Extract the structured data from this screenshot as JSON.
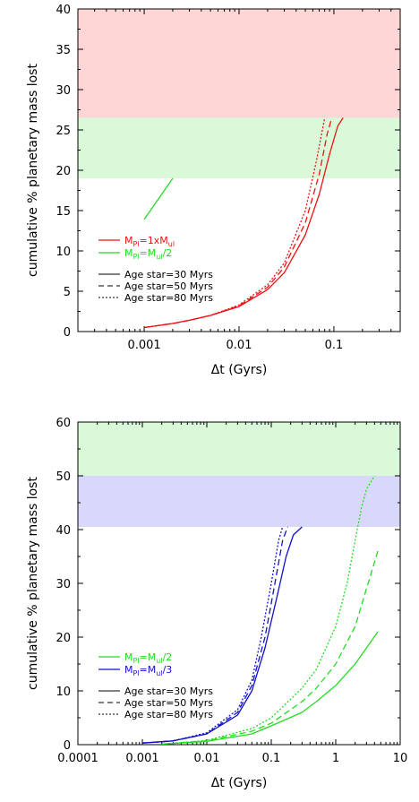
{
  "chart_data": [
    {
      "type": "line",
      "xscale": "log",
      "xlim": [
        0.0002,
        0.5
      ],
      "ylim": [
        0,
        40
      ],
      "xlabel": "Δt (Gyrs)",
      "ylabel": "cumulative % planetary mass lost",
      "xticks": [
        {
          "value": 0.001,
          "label": "0.001"
        },
        {
          "value": 0.01,
          "label": "0.01"
        },
        {
          "value": 0.1,
          "label": "0.1"
        }
      ],
      "yticks": [
        {
          "value": 0,
          "label": "0"
        },
        {
          "value": 5,
          "label": "5"
        },
        {
          "value": 10,
          "label": "10"
        },
        {
          "value": 15,
          "label": "15"
        },
        {
          "value": 20,
          "label": "20"
        },
        {
          "value": 25,
          "label": "25"
        },
        {
          "value": 30,
          "label": "30"
        },
        {
          "value": 35,
          "label": "35"
        },
        {
          "value": 40,
          "label": "40"
        }
      ],
      "bands": [
        {
          "y0": 26.5,
          "y1": 40,
          "color": "#ffd6d6"
        },
        {
          "y0": 19,
          "y1": 26.5,
          "color": "#d9f9d9"
        }
      ],
      "legend_placement": "left",
      "legend_mass": [
        {
          "main": "M",
          "sub1": "Pl",
          "mid": "=1xM",
          "sub2": "ul",
          "color": "#ee1111"
        },
        {
          "main": "M",
          "sub1": "Pl",
          "mid": "=M",
          "sub2": "ul",
          "tail": "/2",
          "color": "#22dd22"
        }
      ],
      "legend_age": [
        {
          "label": "Age star=30 Myrs",
          "dash": "solid"
        },
        {
          "label": "Age star=50 Myrs",
          "dash": "dashed"
        },
        {
          "label": "Age star=80 Myrs",
          "dash": "dotted"
        }
      ],
      "series": [
        {
          "color": "#ee1111",
          "dash": "solid",
          "points": [
            [
              0.001,
              0.5
            ],
            [
              0.002,
              1.0
            ],
            [
              0.003,
              1.4
            ],
            [
              0.005,
              2.0
            ],
            [
              0.01,
              3.1
            ],
            [
              0.02,
              5.2
            ],
            [
              0.03,
              7.3
            ],
            [
              0.05,
              12.0
            ],
            [
              0.07,
              17.0
            ],
            [
              0.09,
              22.0
            ],
            [
              0.11,
              25.5
            ],
            [
              0.125,
              26.5
            ]
          ]
        },
        {
          "color": "#ee1111",
          "dash": "dashed",
          "points": [
            [
              0.001,
              0.5
            ],
            [
              0.002,
              1.0
            ],
            [
              0.003,
              1.4
            ],
            [
              0.005,
              2.0
            ],
            [
              0.01,
              3.2
            ],
            [
              0.02,
              5.5
            ],
            [
              0.03,
              8.0
            ],
            [
              0.05,
              13.5
            ],
            [
              0.07,
              19.5
            ],
            [
              0.085,
              24.5
            ],
            [
              0.095,
              26.5
            ]
          ]
        },
        {
          "color": "#ee1111",
          "dash": "dotted",
          "points": [
            [
              0.001,
              0.5
            ],
            [
              0.002,
              1.0
            ],
            [
              0.003,
              1.4
            ],
            [
              0.005,
              2.0
            ],
            [
              0.01,
              3.3
            ],
            [
              0.02,
              5.8
            ],
            [
              0.03,
              8.5
            ],
            [
              0.05,
              15.0
            ],
            [
              0.065,
              21.0
            ],
            [
              0.08,
              26.5
            ]
          ]
        },
        {
          "color": "#22dd22",
          "dash": "solid",
          "points": [
            [
              0.001,
              13.9
            ],
            [
              0.002,
              19.0
            ]
          ]
        }
      ]
    },
    {
      "type": "line",
      "xscale": "log",
      "xlim": [
        0.0001,
        10
      ],
      "ylim": [
        0,
        60
      ],
      "xlabel": "Δt (Gyrs)",
      "ylabel": "cumulative % planetary mass lost",
      "xticks": [
        {
          "value": 0.0001,
          "label": "0.0001"
        },
        {
          "value": 0.001,
          "label": "0.001"
        },
        {
          "value": 0.01,
          "label": "0.01"
        },
        {
          "value": 0.1,
          "label": "0.1"
        },
        {
          "value": 1,
          "label": "1"
        },
        {
          "value": 10,
          "label": "10"
        }
      ],
      "yticks": [
        {
          "value": 0,
          "label": "0"
        },
        {
          "value": 10,
          "label": "10"
        },
        {
          "value": 20,
          "label": "20"
        },
        {
          "value": 30,
          "label": "30"
        },
        {
          "value": 40,
          "label": "40"
        },
        {
          "value": 50,
          "label": "50"
        },
        {
          "value": 60,
          "label": "60"
        }
      ],
      "bands": [
        {
          "y0": 50,
          "y1": 60,
          "color": "#d9f9d9"
        },
        {
          "y0": 40.5,
          "y1": 50,
          "color": "#d8d8fb"
        }
      ],
      "legend_placement": "left",
      "legend_mass": [
        {
          "main": "M",
          "sub1": "Pl",
          "mid": "=M",
          "sub2": "ul",
          "tail": "/2",
          "color": "#22dd22"
        },
        {
          "main": "M",
          "sub1": "Pl",
          "mid": "=M",
          "sub2": "ul",
          "tail": "/3",
          "color": "#1111cc"
        }
      ],
      "legend_age": [
        {
          "label": "Age star=30 Myrs",
          "dash": "solid"
        },
        {
          "label": "Age star=50 Myrs",
          "dash": "dashed"
        },
        {
          "label": "Age star=80 Myrs",
          "dash": "dotted"
        }
      ],
      "series": [
        {
          "color": "#1111cc",
          "dash": "solid",
          "points": [
            [
              0.001,
              0.3
            ],
            [
              0.003,
              0.7
            ],
            [
              0.01,
              2.0
            ],
            [
              0.03,
              5.5
            ],
            [
              0.05,
              10.0
            ],
            [
              0.08,
              18.0
            ],
            [
              0.12,
              27.0
            ],
            [
              0.17,
              35.0
            ],
            [
              0.22,
              39.0
            ],
            [
              0.3,
              40.5
            ]
          ]
        },
        {
          "color": "#1111cc",
          "dash": "dashed",
          "points": [
            [
              0.001,
              0.3
            ],
            [
              0.003,
              0.7
            ],
            [
              0.01,
              2.0
            ],
            [
              0.03,
              6.0
            ],
            [
              0.05,
              11.0
            ],
            [
              0.08,
              20.0
            ],
            [
              0.11,
              29.0
            ],
            [
              0.15,
              38.0
            ],
            [
              0.18,
              40.5
            ]
          ]
        },
        {
          "color": "#1111cc",
          "dash": "dotted",
          "points": [
            [
              0.001,
              0.3
            ],
            [
              0.003,
              0.7
            ],
            [
              0.01,
              2.2
            ],
            [
              0.03,
              6.5
            ],
            [
              0.05,
              12.0
            ],
            [
              0.07,
              20.0
            ],
            [
              0.1,
              30.0
            ],
            [
              0.13,
              38.0
            ],
            [
              0.15,
              40.5
            ]
          ]
        },
        {
          "color": "#22dd22",
          "dash": "solid",
          "points": [
            [
              0.002,
              0.1
            ],
            [
              0.01,
              0.6
            ],
            [
              0.05,
              2.0
            ],
            [
              0.1,
              3.5
            ],
            [
              0.3,
              6.0
            ],
            [
              0.5,
              8.0
            ],
            [
              1,
              11.0
            ],
            [
              2,
              15.0
            ],
            [
              3,
              18.0
            ],
            [
              4.5,
              21.0
            ]
          ]
        },
        {
          "color": "#22dd22",
          "dash": "dashed",
          "points": [
            [
              0.002,
              0.1
            ],
            [
              0.01,
              0.7
            ],
            [
              0.05,
              2.5
            ],
            [
              0.1,
              4.0
            ],
            [
              0.3,
              8.0
            ],
            [
              0.5,
              10.5
            ],
            [
              1,
              15.0
            ],
            [
              2,
              22.0
            ],
            [
              3,
              29.0
            ],
            [
              4.5,
              36.0
            ]
          ]
        },
        {
          "color": "#22dd22",
          "dash": "dotted",
          "points": [
            [
              0.002,
              0.1
            ],
            [
              0.01,
              0.8
            ],
            [
              0.05,
              3.0
            ],
            [
              0.1,
              5.0
            ],
            [
              0.3,
              10.5
            ],
            [
              0.5,
              14.0
            ],
            [
              1,
              22.0
            ],
            [
              1.5,
              30.0
            ],
            [
              2,
              38.0
            ],
            [
              2.5,
              44.0
            ],
            [
              3,
              47.5
            ],
            [
              4,
              50.0
            ]
          ]
        }
      ]
    }
  ]
}
